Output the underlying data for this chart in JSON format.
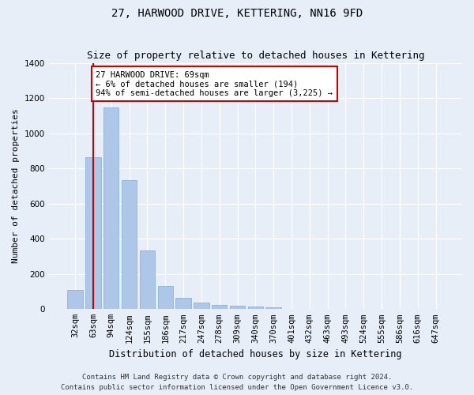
{
  "title": "27, HARWOOD DRIVE, KETTERING, NN16 9FD",
  "subtitle": "Size of property relative to detached houses in Kettering",
  "xlabel": "Distribution of detached houses by size in Kettering",
  "ylabel": "Number of detached properties",
  "categories": [
    "32sqm",
    "63sqm",
    "94sqm",
    "124sqm",
    "155sqm",
    "186sqm",
    "217sqm",
    "247sqm",
    "278sqm",
    "309sqm",
    "340sqm",
    "370sqm",
    "401sqm",
    "432sqm",
    "463sqm",
    "493sqm",
    "524sqm",
    "555sqm",
    "586sqm",
    "616sqm",
    "647sqm"
  ],
  "values": [
    110,
    865,
    1145,
    735,
    335,
    130,
    65,
    38,
    25,
    18,
    14,
    10,
    0,
    0,
    0,
    0,
    0,
    0,
    0,
    0,
    0
  ],
  "bar_color": "#aec6e8",
  "bar_edge_color": "#8ab4d8",
  "vline_x_index": 1,
  "vline_color": "#cc0000",
  "annotation_text": "27 HARWOOD DRIVE: 69sqm\n← 6% of detached houses are smaller (194)\n94% of semi-detached houses are larger (3,225) →",
  "annotation_box_color": "#ffffff",
  "annotation_box_edge_color": "#cc0000",
  "ylim": [
    0,
    1400
  ],
  "yticks": [
    0,
    200,
    400,
    600,
    800,
    1000,
    1200,
    1400
  ],
  "bg_color": "#e8eef8",
  "plot_bg_color": "#e8eef8",
  "grid_color": "#ffffff",
  "footer_line1": "Contains HM Land Registry data © Crown copyright and database right 2024.",
  "footer_line2": "Contains public sector information licensed under the Open Government Licence v3.0.",
  "title_fontsize": 10,
  "subtitle_fontsize": 9,
  "xlabel_fontsize": 8.5,
  "ylabel_fontsize": 8,
  "tick_fontsize": 7.5,
  "annotation_fontsize": 7.5,
  "footer_fontsize": 6.5
}
